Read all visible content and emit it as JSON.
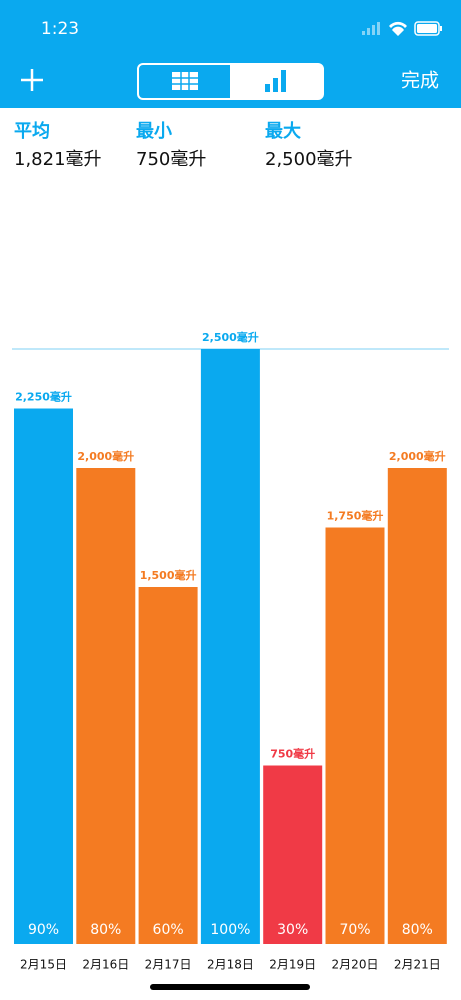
{
  "status_bar": {
    "time": "1:23"
  },
  "nav": {
    "done": "完成"
  },
  "stats": [
    {
      "label": "平均",
      "value": "1,821毫升"
    },
    {
      "label": "最小",
      "value": "750毫升"
    },
    {
      "label": "最大",
      "value": "2,500毫升"
    }
  ],
  "chart_data": {
    "type": "bar",
    "categories": [
      "2月15日",
      "2月16日",
      "2月17日",
      "2月18日",
      "2月19日",
      "2月20日",
      "2月21日"
    ],
    "values": [
      2250,
      2000,
      1500,
      2500,
      750,
      1750,
      2000
    ],
    "value_labels": [
      "2,250毫升",
      "2,000毫升",
      "1,500毫升",
      "2,500毫升",
      "750毫升",
      "1,750毫升",
      "2,000毫升"
    ],
    "bar_notes": [
      "90%",
      "80%",
      "60%",
      "100%",
      "30%",
      "70%",
      "80%"
    ],
    "colors": [
      "#0aa9ef",
      "#f47b22",
      "#f47b22",
      "#0aa9ef",
      "#f03a46",
      "#f47b22",
      "#f47b22"
    ],
    "ylim": [
      0,
      2500
    ]
  }
}
